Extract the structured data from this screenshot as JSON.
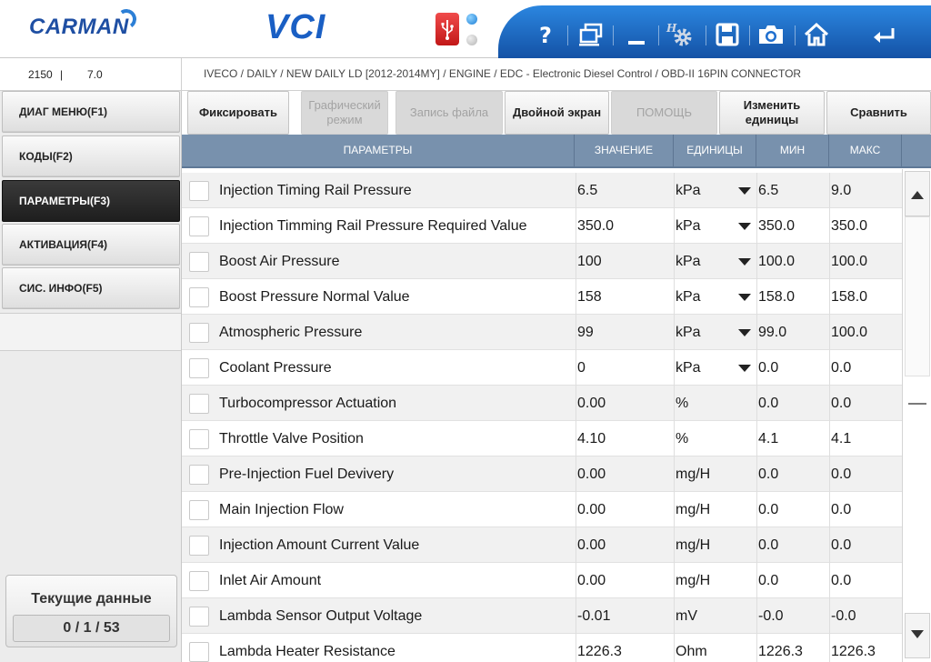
{
  "header": {
    "logo_text": "CARMAN",
    "app_title": "VCI",
    "accent_color": "#1a5fc4",
    "toolbar_color": "#1f6fcf",
    "icons": [
      "help-icon",
      "windows-icon",
      "minimize-icon",
      "settings-icon",
      "save-icon",
      "camera-icon",
      "home-icon",
      "back-icon"
    ]
  },
  "info": {
    "left_value_1": "2150",
    "left_separator": "|",
    "left_value_2": "7.0",
    "breadcrumb": "IVECO / DAILY / NEW DAILY LD [2012-2014MY] / ENGINE / EDC - Electronic Diesel Control / OBD-II 16PIN CONNECTOR"
  },
  "sidebar": {
    "items": [
      {
        "label": "ДИАГ МЕНЮ(F1)",
        "active": false
      },
      {
        "label": "КОДЫ(F2)",
        "active": false
      },
      {
        "label": "ПАРАМЕТРЫ(F3)",
        "active": true
      },
      {
        "label": "АКТИВАЦИЯ(F4)",
        "active": false
      },
      {
        "label": "СИС. ИНФО(F5)",
        "active": false
      }
    ],
    "current_data_title": "Текущие данные",
    "current_data_counter": "0 / 1 / 53"
  },
  "actions": {
    "fix": "Фиксировать",
    "graph": "Графический режим",
    "record": "Запись файла",
    "dual": "Двойной экран",
    "help": "ПОМОЩЬ",
    "units": "Изменить единицы",
    "compare": "Сравнить"
  },
  "table": {
    "headers": {
      "param": "ПАРАМЕТРЫ",
      "value": "ЗНАЧЕНИЕ",
      "unit": "ЕДИНИЦЫ",
      "min": "МИН",
      "max": "МАКС"
    },
    "rows": [
      {
        "name": "Injection Timing Rail Pressure",
        "value": "6.5",
        "unit": "kPa",
        "dropdown": true,
        "min": "6.5",
        "max": "9.0"
      },
      {
        "name": "Injection Timming Rail Pressure Required Value",
        "value": "350.0",
        "unit": "kPa",
        "dropdown": true,
        "min": "350.0",
        "max": "350.0"
      },
      {
        "name": "Boost Air Pressure",
        "value": "100",
        "unit": "kPa",
        "dropdown": true,
        "min": "100.0",
        "max": "100.0"
      },
      {
        "name": "Boost Pressure Normal Value",
        "value": "158",
        "unit": "kPa",
        "dropdown": true,
        "min": "158.0",
        "max": "158.0"
      },
      {
        "name": "Atmospheric Pressure",
        "value": "99",
        "unit": "kPa",
        "dropdown": true,
        "min": "99.0",
        "max": "100.0"
      },
      {
        "name": "Coolant Pressure",
        "value": "0",
        "unit": "kPa",
        "dropdown": true,
        "min": "0.0",
        "max": "0.0"
      },
      {
        "name": "Turbocompressor Actuation",
        "value": "0.00",
        "unit": "%",
        "dropdown": false,
        "min": "0.0",
        "max": "0.0"
      },
      {
        "name": "Throttle Valve Position",
        "value": "4.10",
        "unit": "%",
        "dropdown": false,
        "min": "4.1",
        "max": "4.1"
      },
      {
        "name": "Pre-Injection Fuel Devivery",
        "value": "0.00",
        "unit": "mg/H",
        "dropdown": false,
        "min": "0.0",
        "max": "0.0"
      },
      {
        "name": "Main Injection Flow",
        "value": "0.00",
        "unit": "mg/H",
        "dropdown": false,
        "min": "0.0",
        "max": "0.0"
      },
      {
        "name": "Injection Amount Current Value",
        "value": "0.00",
        "unit": "mg/H",
        "dropdown": false,
        "min": "0.0",
        "max": "0.0"
      },
      {
        "name": "Inlet Air Amount",
        "value": "0.00",
        "unit": "mg/H",
        "dropdown": false,
        "min": "0.0",
        "max": "0.0"
      },
      {
        "name": "Lambda Sensor Output Voltage",
        "value": "-0.01",
        "unit": "mV",
        "dropdown": false,
        "min": "-0.0",
        "max": "-0.0"
      },
      {
        "name": "Lambda Heater Resistance",
        "value": "1226.3",
        "unit": "Ohm",
        "dropdown": false,
        "min": "1226.3",
        "max": "1226.3"
      }
    ]
  },
  "scrollbar": {
    "icons": [
      "scroll-up-icon",
      "scroll-down-icon"
    ]
  }
}
